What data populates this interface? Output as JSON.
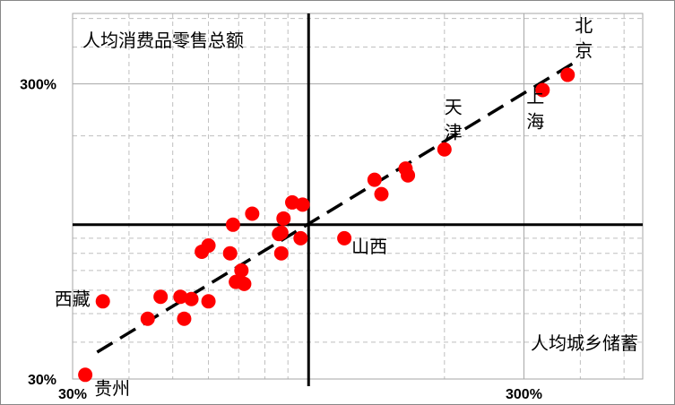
{
  "chart_data": {
    "type": "scatter",
    "title": "",
    "xlabel": "人均城乡储蓄",
    "ylabel": "人均消费品零售总额",
    "x_scale": "log",
    "y_scale": "log",
    "xlim": [
      0.3,
      5.5
    ],
    "ylim": [
      0.3,
      5.2
    ],
    "x_ticks": [
      {
        "value": 0.3,
        "label": "30%"
      },
      {
        "value": 3.0,
        "label": "300%"
      }
    ],
    "y_ticks": [
      {
        "value": 0.3,
        "label": "30%"
      },
      {
        "value": 3.0,
        "label": "300%"
      }
    ],
    "reference_lines": {
      "x": 1.0,
      "y": 1.0
    },
    "trendline": {
      "style": "dashed",
      "from": [
        0.34,
        0.37
      ],
      "to": [
        3.9,
        3.56
      ]
    },
    "marker_color": "#ff0000",
    "points": [
      {
        "x": 3.75,
        "y": 3.22,
        "label": "北\n京"
      },
      {
        "x": 3.3,
        "y": 2.86,
        "label": "上\n海"
      },
      {
        "x": 2.0,
        "y": 1.8,
        "label": "天\n津"
      },
      {
        "x": 0.32,
        "y": 0.31,
        "label": "贵州"
      },
      {
        "x": 0.35,
        "y": 0.55,
        "label": "西藏"
      },
      {
        "x": 1.2,
        "y": 0.9,
        "label": "山西"
      },
      {
        "x": 1.64,
        "y": 1.55
      },
      {
        "x": 1.66,
        "y": 1.47
      },
      {
        "x": 1.4,
        "y": 1.42
      },
      {
        "x": 1.45,
        "y": 1.27
      },
      {
        "x": 0.92,
        "y": 1.19
      },
      {
        "x": 0.97,
        "y": 1.17
      },
      {
        "x": 0.75,
        "y": 1.09
      },
      {
        "x": 0.88,
        "y": 1.05
      },
      {
        "x": 0.68,
        "y": 1.0
      },
      {
        "x": 0.87,
        "y": 0.94
      },
      {
        "x": 0.86,
        "y": 0.93
      },
      {
        "x": 0.96,
        "y": 0.9
      },
      {
        "x": 0.6,
        "y": 0.85
      },
      {
        "x": 0.58,
        "y": 0.81
      },
      {
        "x": 0.67,
        "y": 0.8
      },
      {
        "x": 0.87,
        "y": 0.8
      },
      {
        "x": 0.71,
        "y": 0.7
      },
      {
        "x": 0.69,
        "y": 0.64
      },
      {
        "x": 0.72,
        "y": 0.63
      },
      {
        "x": 0.47,
        "y": 0.57
      },
      {
        "x": 0.52,
        "y": 0.57
      },
      {
        "x": 0.55,
        "y": 0.56
      },
      {
        "x": 0.6,
        "y": 0.55
      },
      {
        "x": 0.44,
        "y": 0.48
      },
      {
        "x": 0.53,
        "y": 0.48
      }
    ]
  }
}
